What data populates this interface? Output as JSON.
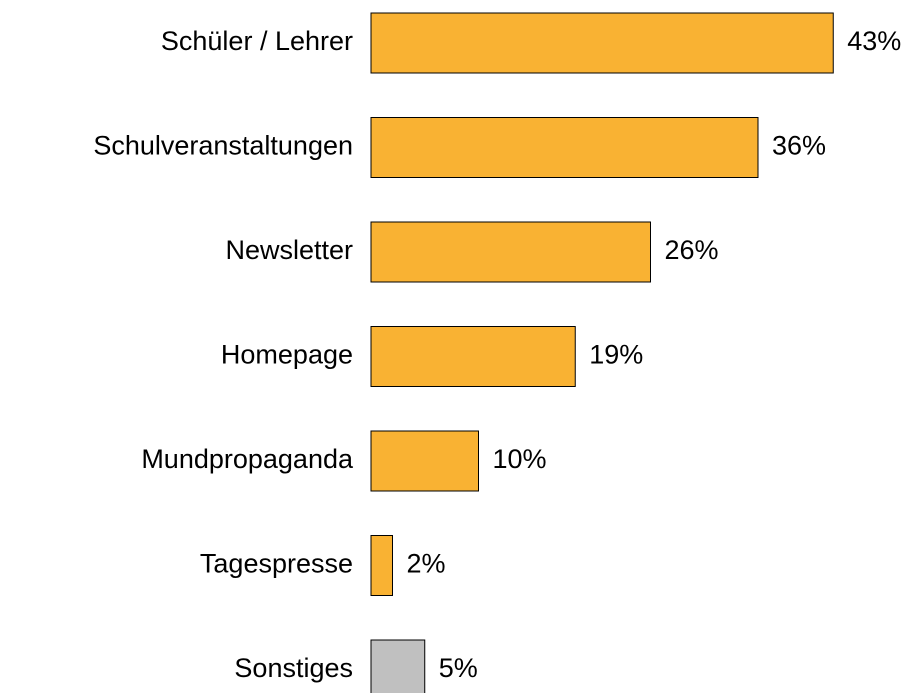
{
  "chart_data": {
    "type": "bar",
    "orientation": "horizontal",
    "categories": [
      "Schüler / Lehrer",
      "Schulveranstaltungen",
      "Newsletter",
      "Homepage",
      "Mundpropaganda",
      "Tagespresse",
      "Sonstiges"
    ],
    "values": [
      43,
      36,
      26,
      19,
      10,
      2,
      5
    ],
    "value_labels": [
      "43%",
      "36%",
      "26%",
      "19%",
      "10%",
      "2%",
      "5%"
    ],
    "colors": [
      "#f9b233",
      "#f9b233",
      "#f9b233",
      "#f9b233",
      "#f9b233",
      "#f9b233",
      "#c0c0c0"
    ]
  }
}
